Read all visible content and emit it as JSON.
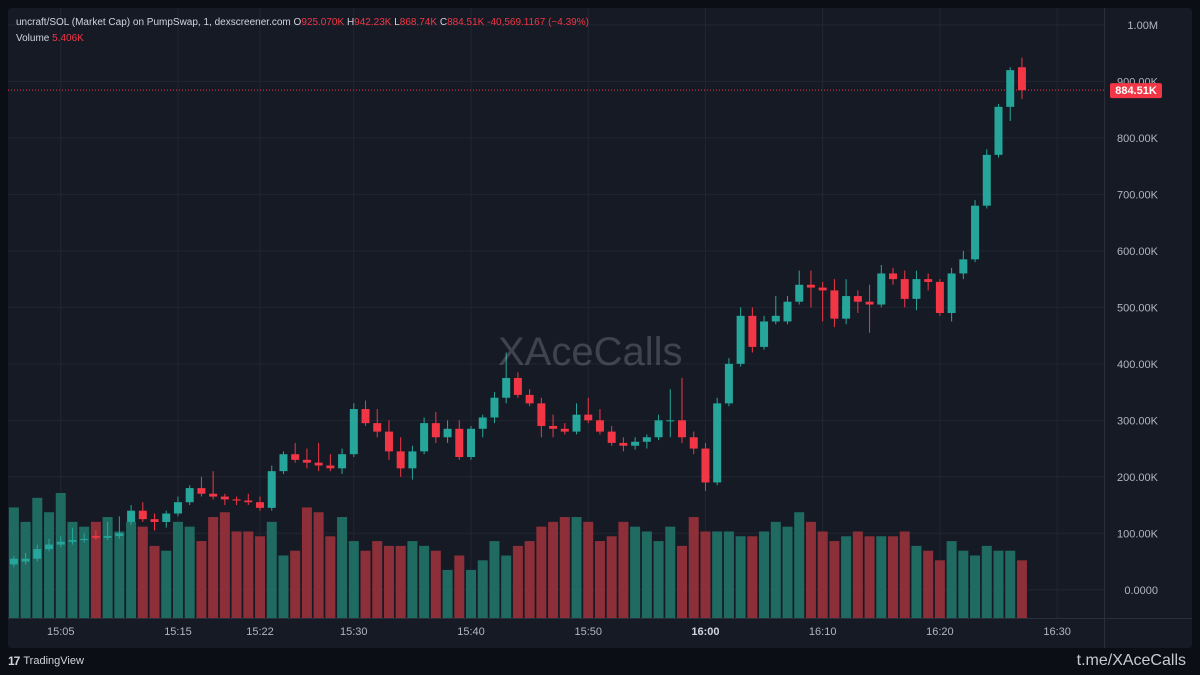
{
  "legend": {
    "symbol_text": "uncraft/SOL (Market Cap) on PumpSwap, 1, dexscreener.com",
    "o_label": "O",
    "o_value": "925.070K",
    "h_label": "H",
    "h_value": "942.23K",
    "l_label": "L",
    "l_value": "868.74K",
    "c_label": "C",
    "c_value": "884.51K",
    "change": "-40,569.1167 (−4.39%)",
    "volume_label": "Volume",
    "volume_value": "5.406K"
  },
  "price_tag": "884.51K",
  "watermark": "XAceCalls",
  "footer": {
    "brand": "TradingView",
    "brand_icon": "tradingview-logo",
    "channel": "t.me/XAceCalls"
  },
  "colors": {
    "up": "#26a69a",
    "down": "#f23645",
    "up_volume": "#1f6b62",
    "down_volume": "#8c2f38",
    "background": "#161a25",
    "grid": "#222632",
    "axis_text": "#b2b5be"
  },
  "chart_data": {
    "type": "candlestick",
    "interval": "1 minute",
    "y_tick_labels": [
      "0.0000",
      "100.00K",
      "200.00K",
      "300.00K",
      "400.00K",
      "500.00K",
      "600.00K",
      "700.00K",
      "800.00K",
      "900.00K",
      "1.00M"
    ],
    "y_ticks": [
      0,
      100000,
      200000,
      300000,
      400000,
      500000,
      600000,
      700000,
      800000,
      900000,
      1000000
    ],
    "x_tick_labels": [
      "15:05",
      "15:15",
      "15:22",
      "15:30",
      "15:40",
      "15:50",
      "16:00",
      "16:10",
      "16:20",
      "16:30"
    ],
    "x_tick_minutes": [
      905,
      915,
      922,
      930,
      940,
      950,
      960,
      970,
      980,
      990
    ],
    "x_tick_bold": [
      "16:00"
    ],
    "x_range_minutes": [
      900.5,
      994
    ],
    "y_range": [
      -50000,
      1030000
    ],
    "last_price": 884510,
    "grid": true,
    "candles": [
      {
        "t": "15:01",
        "o": 45000,
        "h": 60000,
        "l": 40000,
        "c": 55000
      },
      {
        "t": "15:02",
        "o": 50000,
        "h": 65000,
        "l": 45000,
        "c": 55000
      },
      {
        "t": "15:03",
        "o": 55000,
        "h": 80000,
        "l": 50000,
        "c": 72000
      },
      {
        "t": "15:04",
        "o": 72000,
        "h": 90000,
        "l": 68000,
        "c": 80000
      },
      {
        "t": "15:05",
        "o": 80000,
        "h": 95000,
        "l": 75000,
        "c": 85000
      },
      {
        "t": "15:06",
        "o": 85000,
        "h": 110000,
        "l": 80000,
        "c": 88000
      },
      {
        "t": "15:07",
        "o": 88000,
        "h": 100000,
        "l": 84000,
        "c": 90000
      },
      {
        "t": "15:08",
        "o": 95000,
        "h": 105000,
        "l": 88000,
        "c": 92000
      },
      {
        "t": "15:09",
        "o": 92000,
        "h": 120000,
        "l": 88000,
        "c": 95000
      },
      {
        "t": "15:10",
        "o": 95000,
        "h": 130000,
        "l": 90000,
        "c": 100000
      },
      {
        "t": "15:11",
        "o": 120000,
        "h": 150000,
        "l": 115000,
        "c": 140000
      },
      {
        "t": "15:12",
        "o": 140000,
        "h": 155000,
        "l": 120000,
        "c": 125000
      },
      {
        "t": "15:13",
        "o": 125000,
        "h": 135000,
        "l": 105000,
        "c": 120000
      },
      {
        "t": "15:14",
        "o": 120000,
        "h": 140000,
        "l": 110000,
        "c": 135000
      },
      {
        "t": "15:15",
        "o": 135000,
        "h": 165000,
        "l": 130000,
        "c": 155000
      },
      {
        "t": "15:16",
        "o": 155000,
        "h": 185000,
        "l": 150000,
        "c": 180000
      },
      {
        "t": "15:17",
        "o": 180000,
        "h": 200000,
        "l": 165000,
        "c": 170000
      },
      {
        "t": "15:18",
        "o": 170000,
        "h": 210000,
        "l": 160000,
        "c": 165000
      },
      {
        "t": "15:19",
        "o": 165000,
        "h": 170000,
        "l": 150000,
        "c": 160000
      },
      {
        "t": "15:20",
        "o": 160000,
        "h": 165000,
        "l": 150000,
        "c": 158000
      },
      {
        "t": "15:21",
        "o": 158000,
        "h": 170000,
        "l": 150000,
        "c": 155000
      },
      {
        "t": "15:22",
        "o": 155000,
        "h": 165000,
        "l": 140000,
        "c": 145000
      },
      {
        "t": "15:23",
        "o": 145000,
        "h": 220000,
        "l": 140000,
        "c": 210000
      },
      {
        "t": "15:24",
        "o": 210000,
        "h": 245000,
        "l": 205000,
        "c": 240000
      },
      {
        "t": "15:25",
        "o": 240000,
        "h": 260000,
        "l": 225000,
        "c": 230000
      },
      {
        "t": "15:26",
        "o": 230000,
        "h": 250000,
        "l": 215000,
        "c": 225000
      },
      {
        "t": "15:27",
        "o": 225000,
        "h": 260000,
        "l": 210000,
        "c": 220000
      },
      {
        "t": "15:28",
        "o": 220000,
        "h": 240000,
        "l": 210000,
        "c": 215000
      },
      {
        "t": "15:29",
        "o": 215000,
        "h": 250000,
        "l": 205000,
        "c": 240000
      },
      {
        "t": "15:30",
        "o": 240000,
        "h": 330000,
        "l": 235000,
        "c": 320000
      },
      {
        "t": "15:31",
        "o": 320000,
        "h": 335000,
        "l": 290000,
        "c": 295000
      },
      {
        "t": "15:32",
        "o": 295000,
        "h": 320000,
        "l": 270000,
        "c": 280000
      },
      {
        "t": "15:33",
        "o": 280000,
        "h": 300000,
        "l": 230000,
        "c": 245000
      },
      {
        "t": "15:34",
        "o": 245000,
        "h": 270000,
        "l": 200000,
        "c": 215000
      },
      {
        "t": "15:35",
        "o": 215000,
        "h": 255000,
        "l": 195000,
        "c": 245000
      },
      {
        "t": "15:36",
        "o": 245000,
        "h": 305000,
        "l": 240000,
        "c": 295000
      },
      {
        "t": "15:37",
        "o": 295000,
        "h": 315000,
        "l": 260000,
        "c": 270000
      },
      {
        "t": "15:38",
        "o": 270000,
        "h": 300000,
        "l": 260000,
        "c": 285000
      },
      {
        "t": "15:39",
        "o": 285000,
        "h": 300000,
        "l": 230000,
        "c": 235000
      },
      {
        "t": "15:40",
        "o": 235000,
        "h": 290000,
        "l": 230000,
        "c": 285000
      },
      {
        "t": "15:41",
        "o": 285000,
        "h": 310000,
        "l": 270000,
        "c": 305000
      },
      {
        "t": "15:42",
        "o": 305000,
        "h": 350000,
        "l": 295000,
        "c": 340000
      },
      {
        "t": "15:43",
        "o": 340000,
        "h": 420000,
        "l": 330000,
        "c": 375000
      },
      {
        "t": "15:44",
        "o": 375000,
        "h": 385000,
        "l": 340000,
        "c": 345000
      },
      {
        "t": "15:45",
        "o": 345000,
        "h": 355000,
        "l": 325000,
        "c": 330000
      },
      {
        "t": "15:46",
        "o": 330000,
        "h": 340000,
        "l": 270000,
        "c": 290000
      },
      {
        "t": "15:47",
        "o": 290000,
        "h": 310000,
        "l": 270000,
        "c": 285000
      },
      {
        "t": "15:48",
        "o": 285000,
        "h": 295000,
        "l": 275000,
        "c": 280000
      },
      {
        "t": "15:49",
        "o": 280000,
        "h": 330000,
        "l": 275000,
        "c": 310000
      },
      {
        "t": "15:50",
        "o": 310000,
        "h": 340000,
        "l": 295000,
        "c": 300000
      },
      {
        "t": "15:51",
        "o": 300000,
        "h": 320000,
        "l": 275000,
        "c": 280000
      },
      {
        "t": "15:52",
        "o": 280000,
        "h": 290000,
        "l": 255000,
        "c": 260000
      },
      {
        "t": "15:53",
        "o": 260000,
        "h": 270000,
        "l": 245000,
        "c": 255000
      },
      {
        "t": "15:54",
        "o": 255000,
        "h": 270000,
        "l": 248000,
        "c": 262000
      },
      {
        "t": "15:55",
        "o": 262000,
        "h": 275000,
        "l": 250000,
        "c": 270000
      },
      {
        "t": "15:56",
        "o": 270000,
        "h": 310000,
        "l": 265000,
        "c": 300000
      },
      {
        "t": "15:57",
        "o": 300000,
        "h": 355000,
        "l": 270000,
        "c": 300000
      },
      {
        "t": "15:58",
        "o": 300000,
        "h": 375000,
        "l": 260000,
        "c": 270000
      },
      {
        "t": "15:59",
        "o": 270000,
        "h": 280000,
        "l": 240000,
        "c": 250000
      },
      {
        "t": "16:00",
        "o": 250000,
        "h": 260000,
        "l": 175000,
        "c": 190000
      },
      {
        "t": "16:01",
        "o": 190000,
        "h": 340000,
        "l": 185000,
        "c": 330000
      },
      {
        "t": "16:02",
        "o": 330000,
        "h": 410000,
        "l": 325000,
        "c": 400000
      },
      {
        "t": "16:03",
        "o": 400000,
        "h": 500000,
        "l": 395000,
        "c": 485000
      },
      {
        "t": "16:04",
        "o": 485000,
        "h": 500000,
        "l": 420000,
        "c": 430000
      },
      {
        "t": "16:05",
        "o": 430000,
        "h": 485000,
        "l": 425000,
        "c": 475000
      },
      {
        "t": "16:06",
        "o": 475000,
        "h": 520000,
        "l": 470000,
        "c": 485000
      },
      {
        "t": "16:07",
        "o": 475000,
        "h": 520000,
        "l": 470000,
        "c": 510000
      },
      {
        "t": "16:08",
        "o": 510000,
        "h": 565000,
        "l": 505000,
        "c": 540000
      },
      {
        "t": "16:09",
        "o": 540000,
        "h": 565000,
        "l": 500000,
        "c": 535000
      },
      {
        "t": "16:10",
        "o": 535000,
        "h": 545000,
        "l": 475000,
        "c": 530000
      },
      {
        "t": "16:11",
        "o": 530000,
        "h": 550000,
        "l": 465000,
        "c": 480000
      },
      {
        "t": "16:12",
        "o": 480000,
        "h": 550000,
        "l": 470000,
        "c": 520000
      },
      {
        "t": "16:13",
        "o": 520000,
        "h": 530000,
        "l": 490000,
        "c": 510000
      },
      {
        "t": "16:14",
        "o": 510000,
        "h": 540000,
        "l": 455000,
        "c": 505000
      },
      {
        "t": "16:15",
        "o": 505000,
        "h": 575000,
        "l": 500000,
        "c": 560000
      },
      {
        "t": "16:16",
        "o": 560000,
        "h": 570000,
        "l": 540000,
        "c": 550000
      },
      {
        "t": "16:17",
        "o": 550000,
        "h": 565000,
        "l": 500000,
        "c": 515000
      },
      {
        "t": "16:18",
        "o": 515000,
        "h": 565000,
        "l": 495000,
        "c": 550000
      },
      {
        "t": "16:19",
        "o": 550000,
        "h": 560000,
        "l": 530000,
        "c": 545000
      },
      {
        "t": "16:20",
        "o": 545000,
        "h": 550000,
        "l": 485000,
        "c": 490000
      },
      {
        "t": "16:21",
        "o": 490000,
        "h": 570000,
        "l": 475000,
        "c": 560000
      },
      {
        "t": "16:22",
        "o": 560000,
        "h": 600000,
        "l": 550000,
        "c": 585000
      },
      {
        "t": "16:23",
        "o": 585000,
        "h": 690000,
        "l": 580000,
        "c": 680000
      },
      {
        "t": "16:24",
        "o": 680000,
        "h": 780000,
        "l": 675000,
        "c": 770000
      },
      {
        "t": "16:25",
        "o": 770000,
        "h": 860000,
        "l": 765000,
        "c": 855000
      },
      {
        "t": "16:26",
        "o": 855000,
        "h": 925000,
        "l": 830000,
        "c": 920000
      },
      {
        "t": "16:27",
        "o": 925070,
        "h": 942230,
        "l": 868740,
        "c": 884510
      }
    ],
    "volume": [
      23,
      20,
      25,
      22,
      26,
      20,
      19,
      20,
      21,
      18,
      20,
      19,
      15,
      14,
      20,
      19,
      16,
      21,
      22,
      18,
      18,
      17,
      20,
      13,
      14,
      23,
      22,
      17,
      21,
      16,
      14,
      16,
      15,
      15,
      16,
      15,
      14,
      10,
      13,
      10,
      12,
      16,
      13,
      15,
      16,
      19,
      20,
      21,
      21,
      20,
      16,
      17,
      20,
      19,
      18,
      16,
      19,
      15,
      21,
      18,
      18,
      18,
      17,
      17,
      18,
      20,
      19,
      22,
      20,
      18,
      16,
      17,
      18,
      17,
      17,
      17,
      18,
      15,
      14,
      12,
      16,
      14,
      13,
      15,
      14,
      14,
      12
    ]
  }
}
